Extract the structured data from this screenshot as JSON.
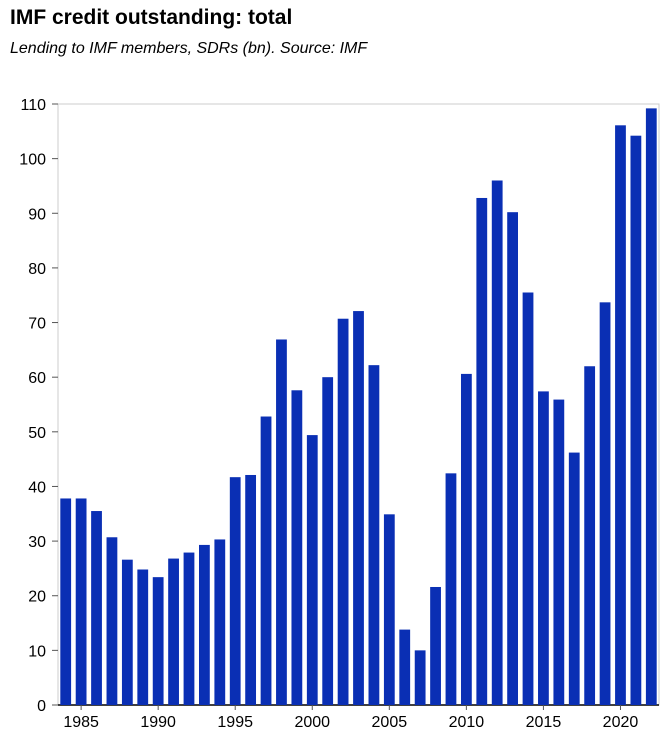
{
  "chart_data": {
    "type": "bar",
    "title": "IMF credit outstanding: total",
    "subtitle": "Lending to IMF members, SDRs (bn). Source: IMF",
    "xlabel": "",
    "ylabel": "",
    "ylim": [
      0,
      110
    ],
    "yticks": [
      "0",
      "10",
      "20",
      "30",
      "40",
      "50",
      "60",
      "70",
      "80",
      "90",
      "100",
      "110"
    ],
    "xticks": [
      "1985",
      "1990",
      "1995",
      "2000",
      "2005",
      "2010",
      "2015",
      "2020"
    ],
    "categories": [
      1984,
      1985,
      1986,
      1987,
      1988,
      1989,
      1990,
      1991,
      1992,
      1993,
      1994,
      1995,
      1996,
      1997,
      1998,
      1999,
      2000,
      2001,
      2002,
      2003,
      2004,
      2005,
      2006,
      2007,
      2008,
      2009,
      2010,
      2011,
      2012,
      2013,
      2014,
      2015,
      2016,
      2017,
      2018,
      2019,
      2020,
      2021,
      2022
    ],
    "values": [
      37.8,
      37.8,
      35.5,
      30.7,
      26.6,
      24.8,
      23.4,
      26.8,
      27.9,
      29.3,
      30.3,
      41.7,
      42.1,
      52.8,
      66.9,
      57.6,
      49.4,
      60.0,
      70.7,
      72.1,
      62.2,
      34.9,
      13.8,
      10.0,
      21.6,
      42.4,
      60.6,
      92.8,
      96.0,
      90.2,
      75.5,
      57.4,
      55.9,
      46.2,
      62.0,
      73.7,
      106.1,
      104.2,
      109.2
    ],
    "grid": false,
    "bar_color": "#0a2fb4",
    "axis_color": "#cccccc"
  }
}
